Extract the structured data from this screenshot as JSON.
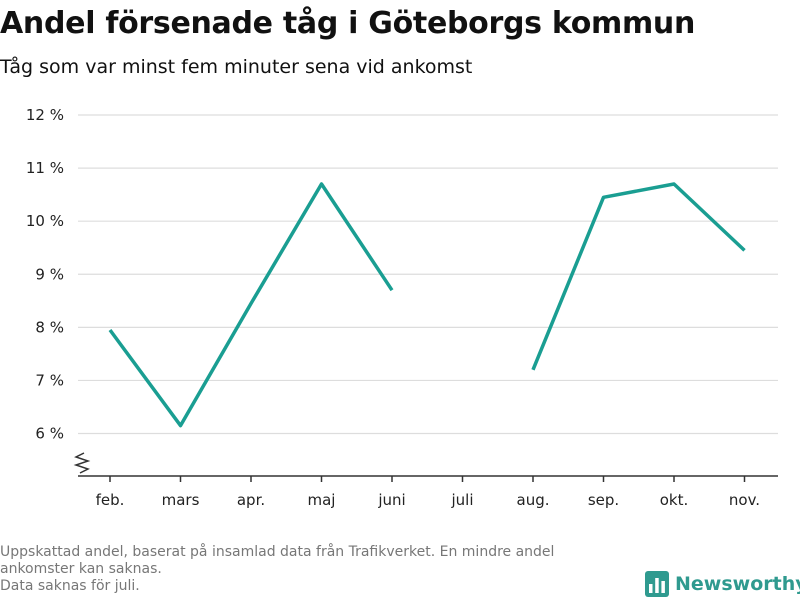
{
  "title": "Andel försenade tåg i Göteborgs kommun",
  "subtitle": "Tåg som var minst fem minuter sena vid ankomst",
  "colors": {
    "line": "#1a9e92",
    "grid": "#dddddd",
    "axis": "#333333",
    "brand": "#2f9a8f"
  },
  "footnote": {
    "line1": "Uppskattad andel, baserat på insamlad data från Trafikverket. En mindre andel",
    "line2": "ankomster kan saknas.",
    "line3": "Data saknas för juli."
  },
  "brand": {
    "name": "Newsworthy",
    "icon": "bar-chart-logo-icon"
  },
  "chart_data": {
    "type": "line",
    "categories": [
      "feb.",
      "mars",
      "apr.",
      "maj",
      "juni",
      "juli",
      "aug.",
      "sep.",
      "okt.",
      "nov."
    ],
    "series": [
      {
        "values": [
          7.95,
          6.15,
          8.45,
          10.7,
          8.7,
          null,
          7.2,
          10.45,
          10.7,
          9.45
        ]
      }
    ],
    "yticks": [
      6,
      7,
      8,
      9,
      10,
      11,
      12
    ],
    "ytick_labels": [
      "6 %",
      "7 %",
      "8 %",
      "9 %",
      "10 %",
      "11 %",
      "12 %"
    ],
    "ylim": [
      5.2,
      12
    ],
    "y_axis_break": true,
    "grid": "horizontal"
  }
}
